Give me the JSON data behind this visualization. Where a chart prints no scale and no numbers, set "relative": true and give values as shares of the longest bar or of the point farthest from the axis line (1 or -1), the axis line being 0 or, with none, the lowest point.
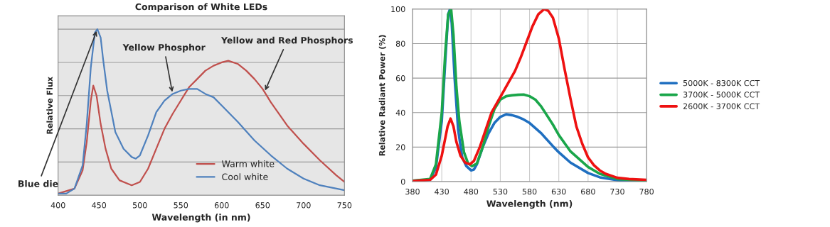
{
  "chart_data": [
    {
      "type": "line",
      "title": "Comparison of White LEDs",
      "xlabel": "Wavelength (in nm)",
      "ylabel": "Relative Flux",
      "relative": true,
      "xlim": [
        400,
        750
      ],
      "xticks": [
        400,
        450,
        500,
        550,
        600,
        650,
        700,
        750
      ],
      "grid": "y",
      "legend": "bottom",
      "tick_labels": "x",
      "series": [
        {
          "name": "Warm white",
          "color": "#c0504d",
          "x": [
            400,
            420,
            430,
            435,
            440,
            443,
            447,
            452,
            458,
            465,
            475,
            490,
            500,
            510,
            520,
            530,
            540,
            550,
            560,
            570,
            580,
            590,
            600,
            608,
            620,
            630,
            640,
            650,
            660,
            680,
            700,
            720,
            740,
            750
          ],
          "values": [
            0.01,
            0.04,
            0.15,
            0.32,
            0.57,
            0.66,
            0.6,
            0.43,
            0.28,
            0.16,
            0.09,
            0.06,
            0.08,
            0.16,
            0.28,
            0.4,
            0.49,
            0.57,
            0.65,
            0.7,
            0.75,
            0.78,
            0.8,
            0.81,
            0.79,
            0.75,
            0.7,
            0.64,
            0.56,
            0.42,
            0.31,
            0.21,
            0.12,
            0.08
          ]
        },
        {
          "name": "Cool white",
          "color": "#4f81bd",
          "x": [
            400,
            410,
            420,
            430,
            435,
            440,
            445,
            448,
            452,
            455,
            460,
            470,
            480,
            490,
            495,
            500,
            510,
            520,
            530,
            540,
            550,
            560,
            570,
            580,
            590,
            600,
            620,
            640,
            660,
            680,
            700,
            720,
            750
          ],
          "values": [
            0.01,
            0.01,
            0.04,
            0.18,
            0.43,
            0.77,
            0.98,
            1.0,
            0.95,
            0.82,
            0.63,
            0.38,
            0.28,
            0.23,
            0.22,
            0.24,
            0.36,
            0.5,
            0.57,
            0.61,
            0.63,
            0.64,
            0.64,
            0.61,
            0.59,
            0.54,
            0.44,
            0.33,
            0.24,
            0.16,
            0.1,
            0.06,
            0.03
          ]
        }
      ],
      "annotations": [
        {
          "text": "Blue die",
          "x": 448,
          "y": 1.0
        },
        {
          "text": "Yellow Phosphor",
          "x": 540,
          "y": 0.61
        },
        {
          "text": "Yellow and Red Phosphors",
          "x": 652,
          "y": 0.62
        }
      ]
    },
    {
      "type": "line",
      "xlabel": "Wavelength (nm)",
      "ylabel": "Relative Radiant Power (%)",
      "xlim": [
        380,
        780
      ],
      "xticks": [
        380,
        430,
        480,
        530,
        580,
        630,
        680,
        730,
        780
      ],
      "ylim": [
        0,
        100
      ],
      "yticks": [
        0,
        20,
        40,
        60,
        80,
        100
      ],
      "grid": true,
      "legend": "right",
      "series": [
        {
          "name": "5000K - 8300K CCT",
          "color": "#1f6fc0",
          "x": [
            380,
            410,
            420,
            430,
            436,
            441,
            444,
            447,
            452,
            458,
            465,
            472,
            480,
            485,
            490,
            500,
            510,
            520,
            530,
            540,
            550,
            560,
            570,
            580,
            600,
            620,
            630,
            650,
            680,
            700,
            730,
            780
          ],
          "values": [
            0.5,
            1,
            8,
            35,
            70,
            97,
            100,
            92,
            60,
            30,
            14,
            9,
            6.5,
            7,
            10,
            20,
            28,
            34,
            37.5,
            39,
            38.5,
            37.5,
            36,
            34,
            28,
            20.5,
            17,
            11,
            5,
            2.5,
            0.8,
            0.2
          ]
        },
        {
          "name": "3700K - 5000K CCT",
          "color": "#1aa64a",
          "x": [
            380,
            410,
            420,
            430,
            436,
            441,
            446,
            450,
            455,
            460,
            468,
            475,
            482,
            490,
            500,
            510,
            520,
            530,
            540,
            550,
            560,
            570,
            580,
            590,
            600,
            620,
            630,
            650,
            680,
            700,
            730,
            780
          ],
          "values": [
            0.5,
            1.5,
            10,
            40,
            75,
            97,
            100,
            85,
            55,
            35,
            17,
            10.5,
            9,
            10.5,
            20,
            32,
            42,
            47.5,
            49.5,
            50,
            50.3,
            50.5,
            49.5,
            47.5,
            43.5,
            33,
            27,
            17.5,
            8.5,
            4.5,
            1.5,
            0.5
          ]
        },
        {
          "name": "2600K - 3700K CCT",
          "color": "#ee1111",
          "x": [
            380,
            410,
            420,
            430,
            440,
            445,
            450,
            455,
            462,
            470,
            478,
            485,
            495,
            505,
            515,
            525,
            535,
            545,
            555,
            565,
            575,
            585,
            595,
            605,
            612,
            620,
            630,
            640,
            650,
            660,
            670,
            680,
            690,
            700,
            710,
            730,
            750,
            780
          ],
          "values": [
            0.3,
            1,
            4,
            15,
            32,
            36.5,
            32,
            23,
            15,
            11,
            10,
            12,
            20,
            30,
            40,
            46,
            52,
            58,
            64,
            72,
            81,
            90,
            97,
            100,
            99,
            95,
            83,
            65,
            48,
            32,
            22,
            14,
            9.5,
            6.5,
            4.5,
            2.2,
            1.5,
            1
          ]
        }
      ]
    }
  ]
}
